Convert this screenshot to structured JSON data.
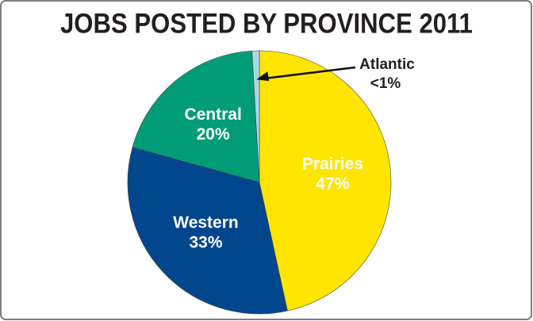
{
  "chart_data": {
    "type": "pie",
    "title": "JOBS POSTED BY PROVINCE 2011",
    "categories": [
      "Prairies",
      "Western",
      "Central",
      "Atlantic"
    ],
    "values": [
      47,
      33,
      20,
      0.9
    ],
    "value_labels": [
      "47%",
      "33%",
      "20%",
      "<1%"
    ],
    "colors": [
      "#ffe500",
      "#00468c",
      "#009b77",
      "#a9d9df"
    ]
  }
}
